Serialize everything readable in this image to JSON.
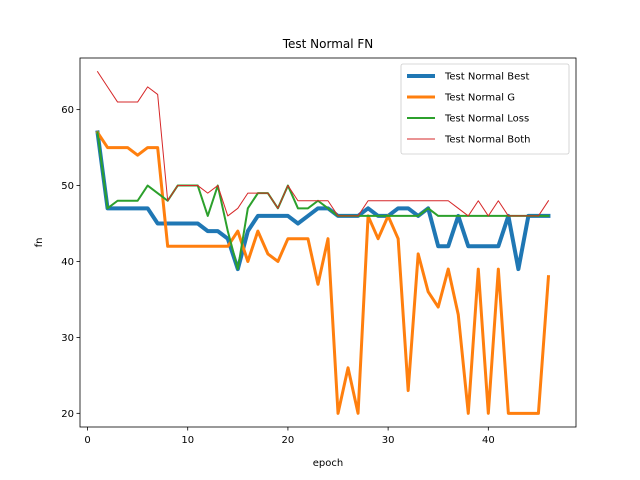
{
  "chart_data": {
    "type": "line",
    "title": "Test Normal FN",
    "xlabel": "epoch",
    "ylabel": "fn",
    "xlim": [
      -0.75,
      48.75
    ],
    "ylim": [
      18.2,
      66.8
    ],
    "xticks": [
      0,
      10,
      20,
      30,
      40
    ],
    "yticks": [
      20,
      30,
      40,
      50,
      60
    ],
    "grid": false,
    "legend": "top-right",
    "x": [
      1,
      2,
      3,
      4,
      5,
      6,
      7,
      8,
      9,
      10,
      11,
      12,
      13,
      14,
      15,
      16,
      17,
      18,
      19,
      20,
      21,
      22,
      23,
      24,
      25,
      26,
      27,
      28,
      29,
      30,
      31,
      32,
      33,
      34,
      35,
      36,
      37,
      38,
      39,
      40,
      41,
      42,
      43,
      44,
      45,
      46
    ],
    "series": [
      {
        "name": "Test Normal Best",
        "color": "#1f77b4",
        "values": [
          57,
          47,
          47,
          47,
          47,
          47,
          45,
          45,
          45,
          45,
          45,
          44,
          44,
          43,
          39,
          44,
          46,
          46,
          46,
          46,
          45,
          46,
          47,
          47,
          46,
          46,
          46,
          47,
          46,
          46,
          47,
          47,
          46,
          47,
          42,
          42,
          46,
          42,
          42,
          42,
          42,
          46,
          39,
          46,
          46,
          46
        ]
      },
      {
        "name": "Test Normal G",
        "color": "#ff7f0e",
        "values": [
          57,
          55,
          55,
          55,
          54,
          55,
          55,
          42,
          42,
          42,
          42,
          42,
          42,
          42,
          44,
          40,
          44,
          41,
          40,
          43,
          43,
          43,
          37,
          43,
          20,
          26,
          20,
          46,
          43,
          46,
          43,
          23,
          41,
          36,
          34,
          39,
          33,
          20,
          39,
          20,
          39,
          20,
          20,
          20,
          20,
          38
        ]
      },
      {
        "name": "Test Normal Loss",
        "color": "#2ca02c",
        "values": [
          57,
          47,
          48,
          48,
          48,
          50,
          49,
          48,
          50,
          50,
          50,
          46,
          50,
          44,
          39,
          47,
          49,
          49,
          47,
          50,
          47,
          47,
          48,
          47,
          46,
          46,
          46,
          46,
          46,
          46,
          46,
          46,
          46,
          47,
          46,
          46,
          46,
          46,
          46,
          46,
          46,
          46,
          46,
          46,
          46,
          46
        ]
      },
      {
        "name": "Test Normal Both",
        "color": "#d62728",
        "values": [
          65,
          63,
          61,
          61,
          61,
          63,
          62,
          48,
          50,
          50,
          50,
          49,
          50,
          46,
          47,
          49,
          49,
          49,
          47,
          50,
          48,
          48,
          48,
          48,
          46,
          46,
          46,
          48,
          48,
          48,
          48,
          48,
          48,
          48,
          48,
          48,
          47,
          46,
          48,
          46,
          48,
          46,
          46,
          46,
          46,
          48
        ]
      }
    ]
  }
}
